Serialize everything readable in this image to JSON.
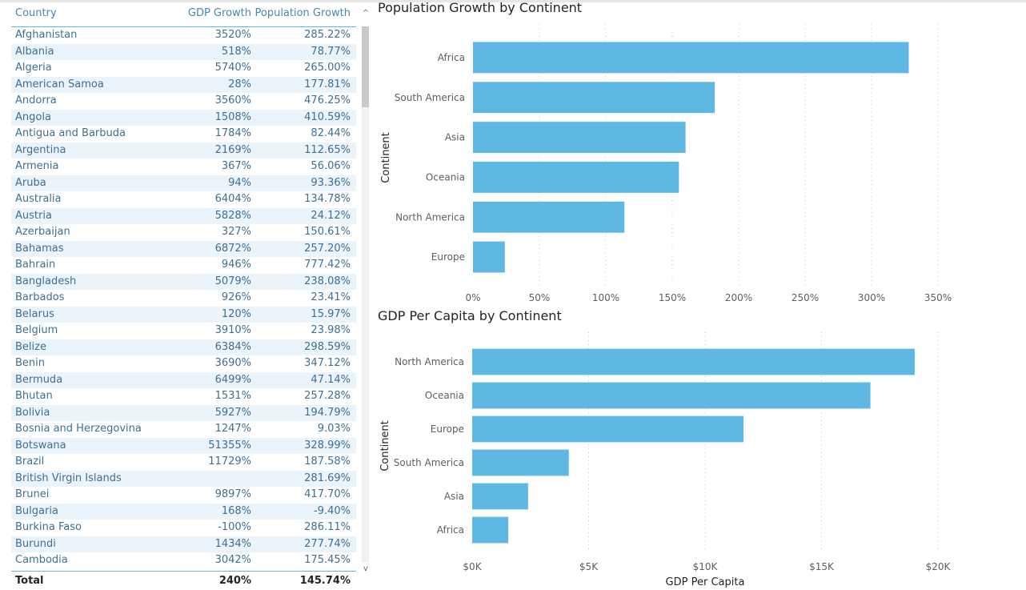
{
  "table": {
    "columns": [
      "Country",
      "GDP Growth",
      "Population Growth"
    ],
    "rows": [
      [
        "Afghanistan",
        "3520%",
        "285.22%"
      ],
      [
        "Albania",
        "518%",
        "78.77%"
      ],
      [
        "Algeria",
        "5740%",
        "265.00%"
      ],
      [
        "American Samoa",
        "28%",
        "177.81%"
      ],
      [
        "Andorra",
        "3560%",
        "476.25%"
      ],
      [
        "Angola",
        "1508%",
        "410.59%"
      ],
      [
        "Antigua and Barbuda",
        "1784%",
        "82.44%"
      ],
      [
        "Argentina",
        "2169%",
        "112.65%"
      ],
      [
        "Armenia",
        "367%",
        "56.06%"
      ],
      [
        "Aruba",
        "94%",
        "93.36%"
      ],
      [
        "Australia",
        "6404%",
        "134.78%"
      ],
      [
        "Austria",
        "5828%",
        "24.12%"
      ],
      [
        "Azerbaijan",
        "327%",
        "150.61%"
      ],
      [
        "Bahamas",
        "6872%",
        "257.20%"
      ],
      [
        "Bahrain",
        "946%",
        "777.42%"
      ],
      [
        "Bangladesh",
        "5079%",
        "238.08%"
      ],
      [
        "Barbados",
        "926%",
        "23.41%"
      ],
      [
        "Belarus",
        "120%",
        "15.97%"
      ],
      [
        "Belgium",
        "3910%",
        "23.98%"
      ],
      [
        "Belize",
        "6384%",
        "298.59%"
      ],
      [
        "Benin",
        "3690%",
        "347.12%"
      ],
      [
        "Bermuda",
        "6499%",
        "47.14%"
      ],
      [
        "Bhutan",
        "1531%",
        "257.28%"
      ],
      [
        "Bolivia",
        "5927%",
        "194.79%"
      ],
      [
        "Bosnia and Herzegovina",
        "1247%",
        "9.03%"
      ],
      [
        "Botswana",
        "51355%",
        "328.99%"
      ],
      [
        "Brazil",
        "11729%",
        "187.58%"
      ],
      [
        "British Virgin Islands",
        "",
        "281.69%"
      ],
      [
        "Brunei",
        "9897%",
        "417.70%"
      ],
      [
        "Bulgaria",
        "168%",
        "-9.40%"
      ],
      [
        "Burkina Faso",
        "-100%",
        "286.11%"
      ],
      [
        "Burundi",
        "1434%",
        "277.74%"
      ],
      [
        "Cambodia",
        "3042%",
        "175.45%"
      ]
    ],
    "total": {
      "label": "Total",
      "gdp_growth": "240%",
      "population_growth": "145.74%"
    },
    "scroll_up_glyph": "^",
    "scroll_down_glyph": "v"
  },
  "chart_data": [
    {
      "type": "bar",
      "orientation": "horizontal",
      "title": "Population Growth by Continent",
      "xlabel": "",
      "ylabel": "Continent",
      "categories": [
        "Africa",
        "South America",
        "Asia",
        "Oceania",
        "North America",
        "Europe"
      ],
      "values": [
        328,
        182,
        160,
        155,
        114,
        24
      ],
      "unit": "%",
      "xlim": [
        0,
        350
      ],
      "xticks": [
        0,
        50,
        100,
        150,
        200,
        250,
        300,
        350
      ],
      "xtick_labels": [
        "0%",
        "50%",
        "100%",
        "150%",
        "200%",
        "250%",
        "300%",
        "350%"
      ],
      "grid": true,
      "bar_color": "#5eb8e3"
    },
    {
      "type": "bar",
      "orientation": "horizontal",
      "title": "GDP Per Capita by Continent",
      "xlabel": "GDP Per Capita",
      "ylabel": "Continent",
      "categories": [
        "North America",
        "Oceania",
        "Europe",
        "South America",
        "Asia",
        "Africa"
      ],
      "values": [
        19000,
        17100,
        11650,
        4150,
        2400,
        1550
      ],
      "unit": "$",
      "xlim": [
        0,
        20000
      ],
      "xticks": [
        0,
        5000,
        10000,
        15000,
        20000
      ],
      "xtick_labels": [
        "$0K",
        "$5K",
        "$10K",
        "$15K",
        "$20K"
      ],
      "grid": true,
      "bar_color": "#5eb8e3"
    }
  ]
}
